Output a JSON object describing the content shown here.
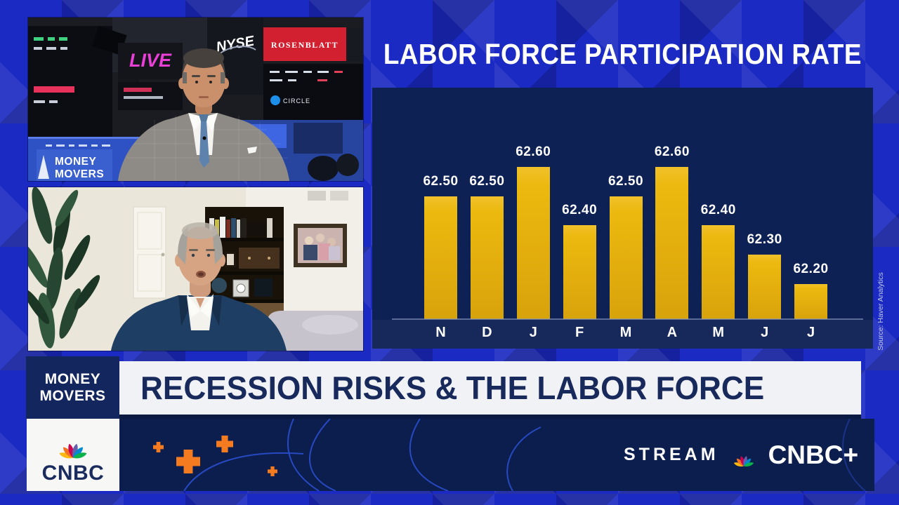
{
  "chart_data": {
    "type": "bar",
    "title": "LABOR FORCE PARTICIPATION RATE",
    "categories": [
      "N",
      "D",
      "J",
      "F",
      "M",
      "A",
      "M",
      "J",
      "J"
    ],
    "values": [
      62.5,
      62.5,
      62.6,
      62.4,
      62.5,
      62.6,
      62.4,
      62.3,
      62.2
    ],
    "ylim": [
      62.08,
      62.87
    ],
    "grid": false,
    "legend": "none",
    "bar_color": "#E3AE0D",
    "value_label_color": "#FFFFFF",
    "source": "Source: Haver Analytics"
  },
  "top_video": {
    "live_badge": "LIVE",
    "nyse_sign": "NYSE",
    "rosenblatt_sign": "ROSENBLATT",
    "circle_sign": "CIRCLE",
    "desk_sign_line1": "MONEY",
    "desk_sign_line2": "MOVERS"
  },
  "banner": {
    "kicker_line1": "MONEY",
    "kicker_line2": "MOVERS",
    "headline": "RECESSION RISKS & THE LABOR FORCE"
  },
  "footer": {
    "cnbc_wordmark": "CNBC",
    "stream_label": "STREAM",
    "stream_wordmark": "CNBC+"
  },
  "colors": {
    "background_blue": "#1B2AC2",
    "panel_navy": "#0E2154",
    "bar_gold": "#E3AE0D",
    "banner_text_navy": "#18295C",
    "accent_orange": "#F47B20",
    "live_magenta": "#E93FD6",
    "rosenblatt_red": "#D22030"
  }
}
